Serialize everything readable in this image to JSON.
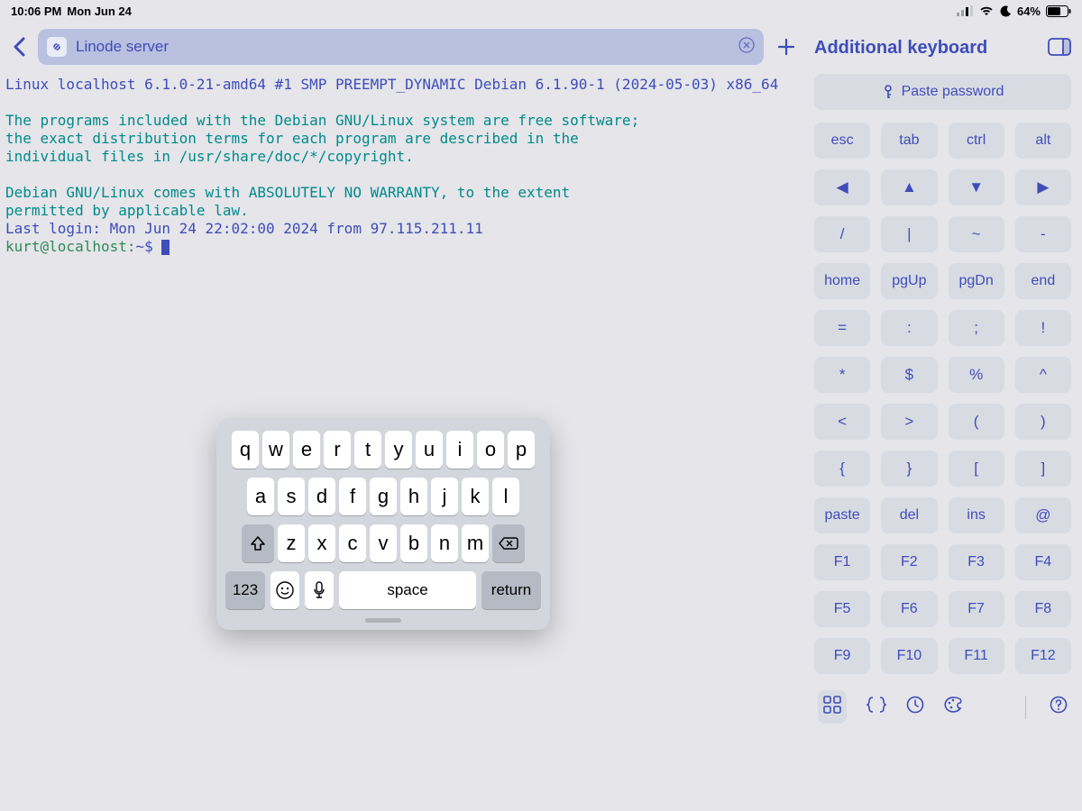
{
  "status": {
    "time": "10:06 PM",
    "date": "Mon Jun 24",
    "battery_pct": "64%"
  },
  "topbar": {
    "server_name": "Linode server"
  },
  "terminal": {
    "line1": "Linux localhost 6.1.0-21-amd64 #1 SMP PREEMPT_DYNAMIC Debian 6.1.90-1 (2024-05-03) x86_64",
    "para1_l1": "The programs included with the Debian GNU/Linux system are free software;",
    "para1_l2": "the exact distribution terms for each program are described in the",
    "para1_l3": "individual files in /usr/share/doc/*/copyright.",
    "para2_l1": "Debian GNU/Linux comes with ABSOLUTELY NO WARRANTY, to the extent",
    "para2_l2": "permitted by applicable law.",
    "lastlogin": "Last login: Mon Jun 24 22:02:00 2024 from 97.115.211.11",
    "prompt_user": "kurt@localhost",
    "prompt_path": "~",
    "prompt_symbol": "$"
  },
  "right": {
    "title": "Additional keyboard",
    "paste_password": "Paste password",
    "rows": [
      [
        "esc",
        "tab",
        "ctrl",
        "alt"
      ],
      [
        "◀",
        "▲",
        "▼",
        "▶"
      ],
      [
        "/",
        "|",
        "~",
        "-"
      ],
      [
        "home",
        "pgUp",
        "pgDn",
        "end"
      ],
      [
        "=",
        ":",
        ";",
        "!"
      ],
      [
        "*",
        "$",
        "%",
        "^"
      ],
      [
        "<",
        ">",
        "(",
        ")"
      ],
      [
        "{",
        "}",
        "[",
        "]"
      ],
      [
        "paste",
        "del",
        "ins",
        "@"
      ],
      [
        "F1",
        "F2",
        "F3",
        "F4"
      ],
      [
        "F5",
        "F6",
        "F7",
        "F8"
      ],
      [
        "F9",
        "F10",
        "F11",
        "F12"
      ]
    ]
  },
  "keyboard": {
    "row1": [
      "q",
      "w",
      "e",
      "r",
      "t",
      "y",
      "u",
      "i",
      "o",
      "p"
    ],
    "row2": [
      "a",
      "s",
      "d",
      "f",
      "g",
      "h",
      "j",
      "k",
      "l"
    ],
    "row3": [
      "z",
      "x",
      "c",
      "v",
      "b",
      "n",
      "m"
    ],
    "num_label": "123",
    "space_label": "space",
    "return_label": "return"
  },
  "colors": {
    "accent": "#3e4db8",
    "bg": "#e5e5ea",
    "key_bg": "#d9dbe3",
    "term_green": "#2e8b57",
    "term_teal": "#008b8b"
  }
}
